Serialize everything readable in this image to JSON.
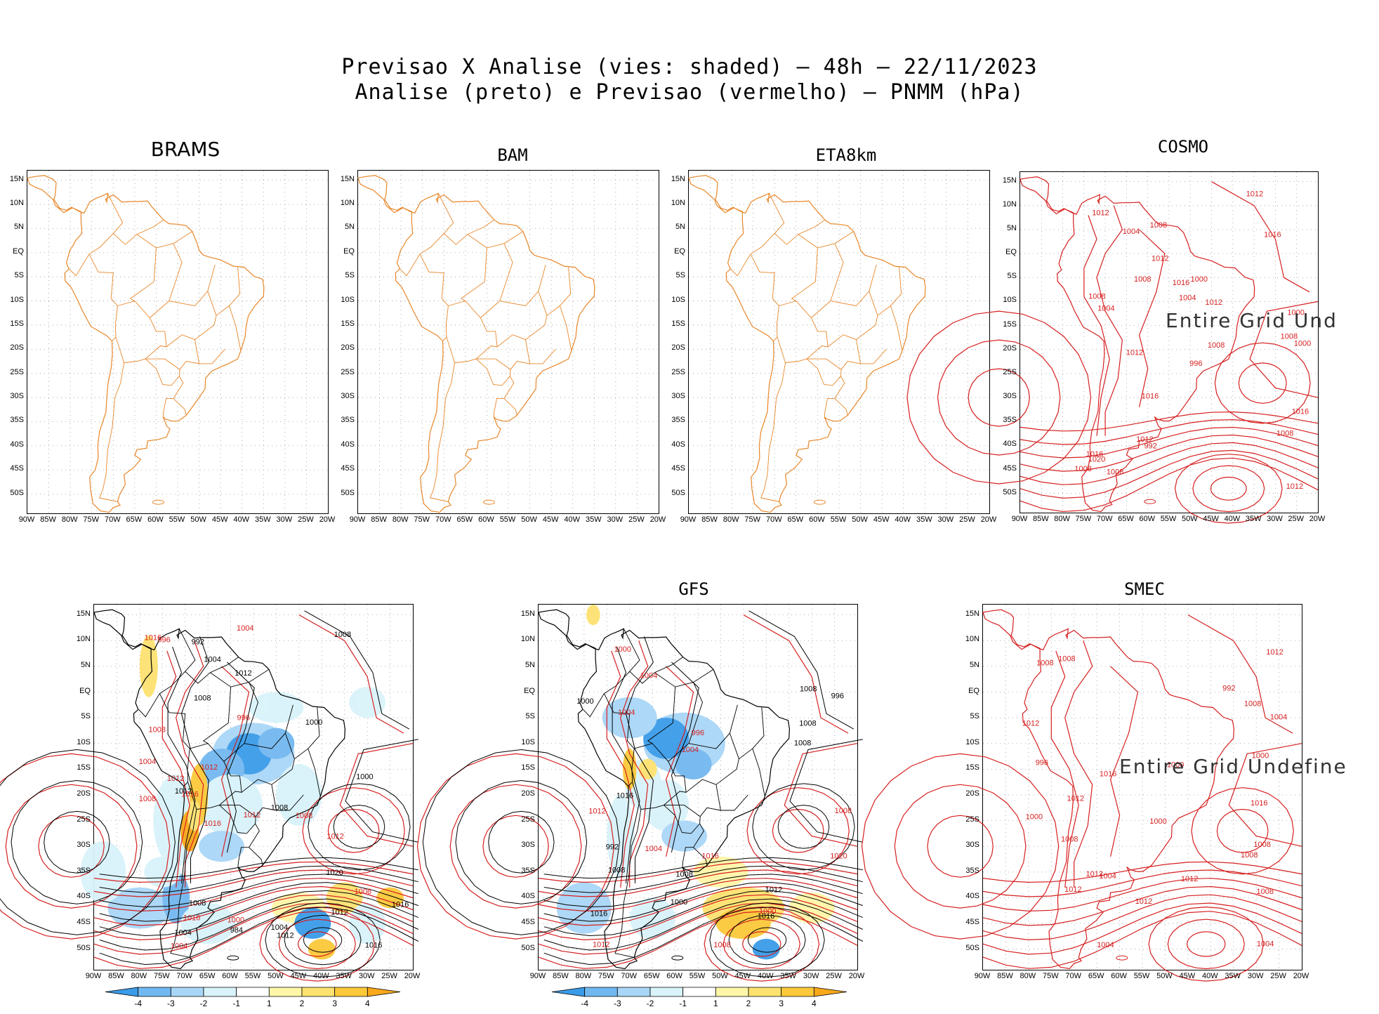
{
  "header": {
    "line1": "Previsao X Analise (vies: shaded) — 48h — 22/11/2023",
    "line2": "Analise (preto) e Previsao (vermelho) — PNMM (hPa)"
  },
  "axes": {
    "lat_labels": [
      "15N",
      "10N",
      "5N",
      "EQ",
      "5S",
      "10S",
      "15S",
      "20S",
      "25S",
      "30S",
      "35S",
      "40S",
      "45S",
      "50S"
    ],
    "lon_labels": [
      "90W",
      "85W",
      "80W",
      "75W",
      "70W",
      "65W",
      "60W",
      "55W",
      "50W",
      "45W",
      "40W",
      "35W",
      "30W",
      "25W",
      "20W"
    ]
  },
  "colors": {
    "coastline": "#e8872a",
    "analysis": "#000000",
    "forecast": "#d62020",
    "bias_neg": [
      "#3a9be8",
      "#72b8f0",
      "#a9d6f7",
      "#d9f3fa"
    ],
    "bias_pos": [
      "#fff6a8",
      "#fde270",
      "#fbc93a",
      "#f8a81a"
    ],
    "grid": "#999999"
  },
  "panels": [
    {
      "id": "brams",
      "title": "BRAMS",
      "style": "coast",
      "undefined_text": ""
    },
    {
      "id": "bam",
      "title": "BAM",
      "style": "coast",
      "undefined_text": ""
    },
    {
      "id": "eta8km",
      "title": "ETA8km",
      "style": "coast",
      "undefined_text": ""
    },
    {
      "id": "cosmo",
      "title": "COSMO",
      "style": "forecast-only",
      "undefined_text": "Entire Grid Und"
    },
    {
      "id": "bottom-left",
      "title": "",
      "style": "bias",
      "undefined_text": ""
    },
    {
      "id": "gfs",
      "title": "GFS",
      "style": "bias",
      "undefined_text": ""
    },
    {
      "id": "smec",
      "title": "SMEC",
      "style": "forecast-only",
      "undefined_text": "Entire Grid Undefine"
    }
  ],
  "isobar_labels": {
    "cosmo": [
      "1012",
      "1008",
      "1016",
      "1008",
      "1012",
      "1012",
      "1008",
      "1016",
      "1012",
      "1004",
      "1008",
      "1016",
      "1016",
      "1012",
      "1008",
      "1000",
      "1008",
      "1012",
      "1008",
      "1004",
      "1020",
      "1016",
      "1000",
      "996",
      "1012",
      "992",
      "1004",
      "1008",
      "1000"
    ],
    "bottom-left": [
      "1016",
      "1012",
      "1012",
      "1008",
      "1008",
      "1008",
      "1012",
      "1008",
      "1016",
      "1012",
      "1004",
      "1008",
      "1012",
      "1016",
      "1004",
      "1016",
      "1008",
      "1012",
      "1016",
      "1004",
      "1016",
      "1000",
      "1008",
      "1012",
      "1004",
      "1020",
      "1012",
      "1000",
      "1008",
      "1004",
      "996",
      "1004",
      "996",
      "992",
      "1000",
      "984"
    ],
    "gfs": [
      "1012",
      "1012",
      "1012",
      "1008",
      "1008",
      "1008",
      "1004",
      "1008",
      "1004",
      "1016",
      "1016",
      "1016",
      "1000",
      "1008",
      "996",
      "1000",
      "1004",
      "1008",
      "1020",
      "1016",
      "1004",
      "1000",
      "1000",
      "996",
      "1008",
      "992"
    ],
    "smec": [
      "1012",
      "1008",
      "1008",
      "1012",
      "1008",
      "1012",
      "1008",
      "1012",
      "1012",
      "1004",
      "1000",
      "1012",
      "1008",
      "1016",
      "1008",
      "1000",
      "1004",
      "1016",
      "1000",
      "1008",
      "1004",
      "996",
      "992",
      "1012",
      "1004",
      "1000"
    ]
  },
  "colorbar": {
    "ticks": [
      "-4",
      "-3",
      "-2",
      "-1",
      "1",
      "2",
      "3",
      "4"
    ]
  }
}
